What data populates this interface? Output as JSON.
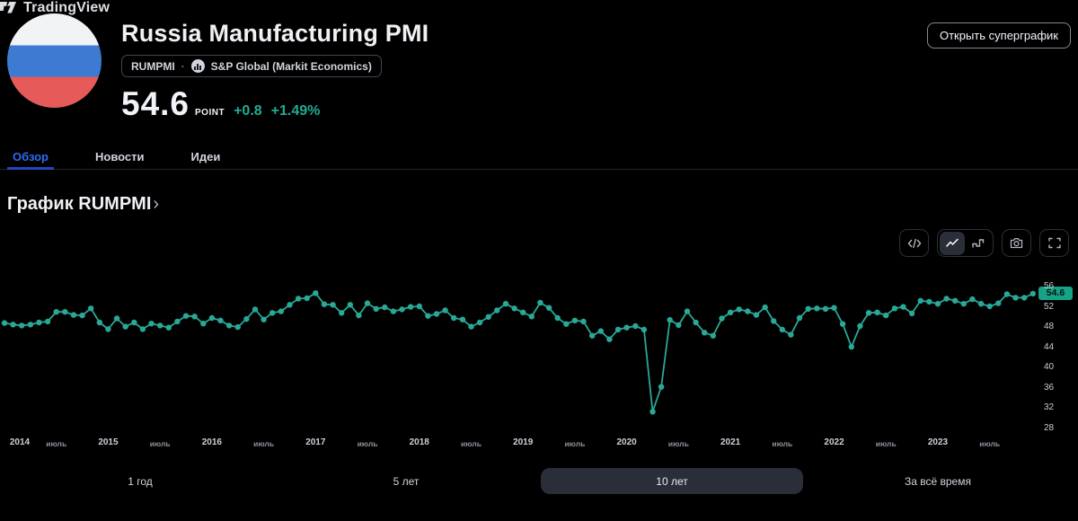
{
  "header": {
    "title": "Russia Manufacturing PMI",
    "symbol": "RUMPMI",
    "separator": "·",
    "source": "S&P Global (Markit Economics)",
    "value": "54.6",
    "unit": "POINT",
    "change_abs": "+0.8",
    "change_pct": "+1.49%",
    "superchart_button": "Открыть суперграфик"
  },
  "tabs": [
    {
      "label": "Обзор",
      "active": true
    },
    {
      "label": "Новости",
      "active": false
    },
    {
      "label": "Идеи",
      "active": false
    }
  ],
  "section": {
    "title": "График RUMPMI",
    "chevron": "›"
  },
  "toolbar": {
    "icons": [
      "code-view",
      "line-chart",
      "step-chart",
      "snapshot-camera",
      "fullscreen"
    ],
    "active_icon": "line-chart"
  },
  "watermark": "TradingView",
  "range_buttons": [
    {
      "label": "1 год",
      "active": false
    },
    {
      "label": "5 лет",
      "active": false
    },
    {
      "label": "10 лет",
      "active": true
    },
    {
      "label": "За всё время",
      "active": false
    }
  ],
  "colors": {
    "line": "#2aa897",
    "last_value_badge_bg": "#17a287",
    "positive_change": "#22ab94",
    "active_tab": "#2e6bf2",
    "flag_blue": "#3c7bd1",
    "flag_red": "#e65a5a"
  },
  "chart_data": {
    "type": "line",
    "title": "График RUMPMI",
    "interval": "monthly",
    "start_year": 2014,
    "x_start": "2014-01",
    "x_end": "2023-12",
    "x_tick_years": [
      2014,
      2015,
      2016,
      2017,
      2018,
      2019,
      2020,
      2021,
      2022,
      2023
    ],
    "x_mid_label": "июль",
    "y_ticks": [
      56,
      52,
      48,
      44,
      40,
      36,
      32,
      28
    ],
    "ylim": [
      26.5,
      57.5
    ],
    "last_value_label": "54.6",
    "legend": "RUMPMI point",
    "values": [
      48.8,
      48.5,
      48.3,
      48.5,
      48.9,
      49.1,
      51.0,
      51.0,
      50.4,
      50.3,
      51.7,
      48.9,
      47.6,
      49.7,
      48.1,
      48.9,
      47.6,
      48.7,
      48.3,
      47.9,
      49.1,
      50.2,
      50.1,
      48.7,
      49.8,
      49.3,
      48.3,
      48.0,
      49.6,
      51.5,
      49.5,
      50.8,
      51.1,
      52.4,
      53.6,
      53.7,
      54.7,
      52.5,
      52.4,
      50.8,
      52.4,
      50.3,
      52.7,
      51.6,
      51.9,
      51.1,
      51.5,
      52.0,
      52.1,
      50.2,
      50.6,
      51.3,
      49.8,
      49.5,
      48.1,
      48.9,
      50.0,
      51.3,
      52.6,
      51.7,
      50.9,
      50.1,
      52.8,
      51.8,
      49.8,
      48.6,
      49.3,
      49.1,
      46.3,
      47.2,
      45.6,
      47.5,
      47.9,
      48.2,
      47.5,
      31.3,
      36.2,
      49.4,
      48.4,
      51.1,
      48.9,
      46.9,
      46.3,
      49.7,
      50.9,
      51.5,
      51.1,
      50.4,
      51.9,
      49.2,
      47.5,
      46.5,
      49.8,
      51.6,
      51.7,
      51.6,
      51.8,
      48.6,
      44.1,
      48.2,
      50.8,
      50.9,
      50.3,
      51.7,
      52.0,
      50.7,
      53.2,
      53.0,
      52.6,
      53.6,
      53.2,
      52.6,
      53.5,
      52.6,
      52.1,
      52.7,
      54.5,
      53.8,
      53.8,
      54.6
    ]
  }
}
